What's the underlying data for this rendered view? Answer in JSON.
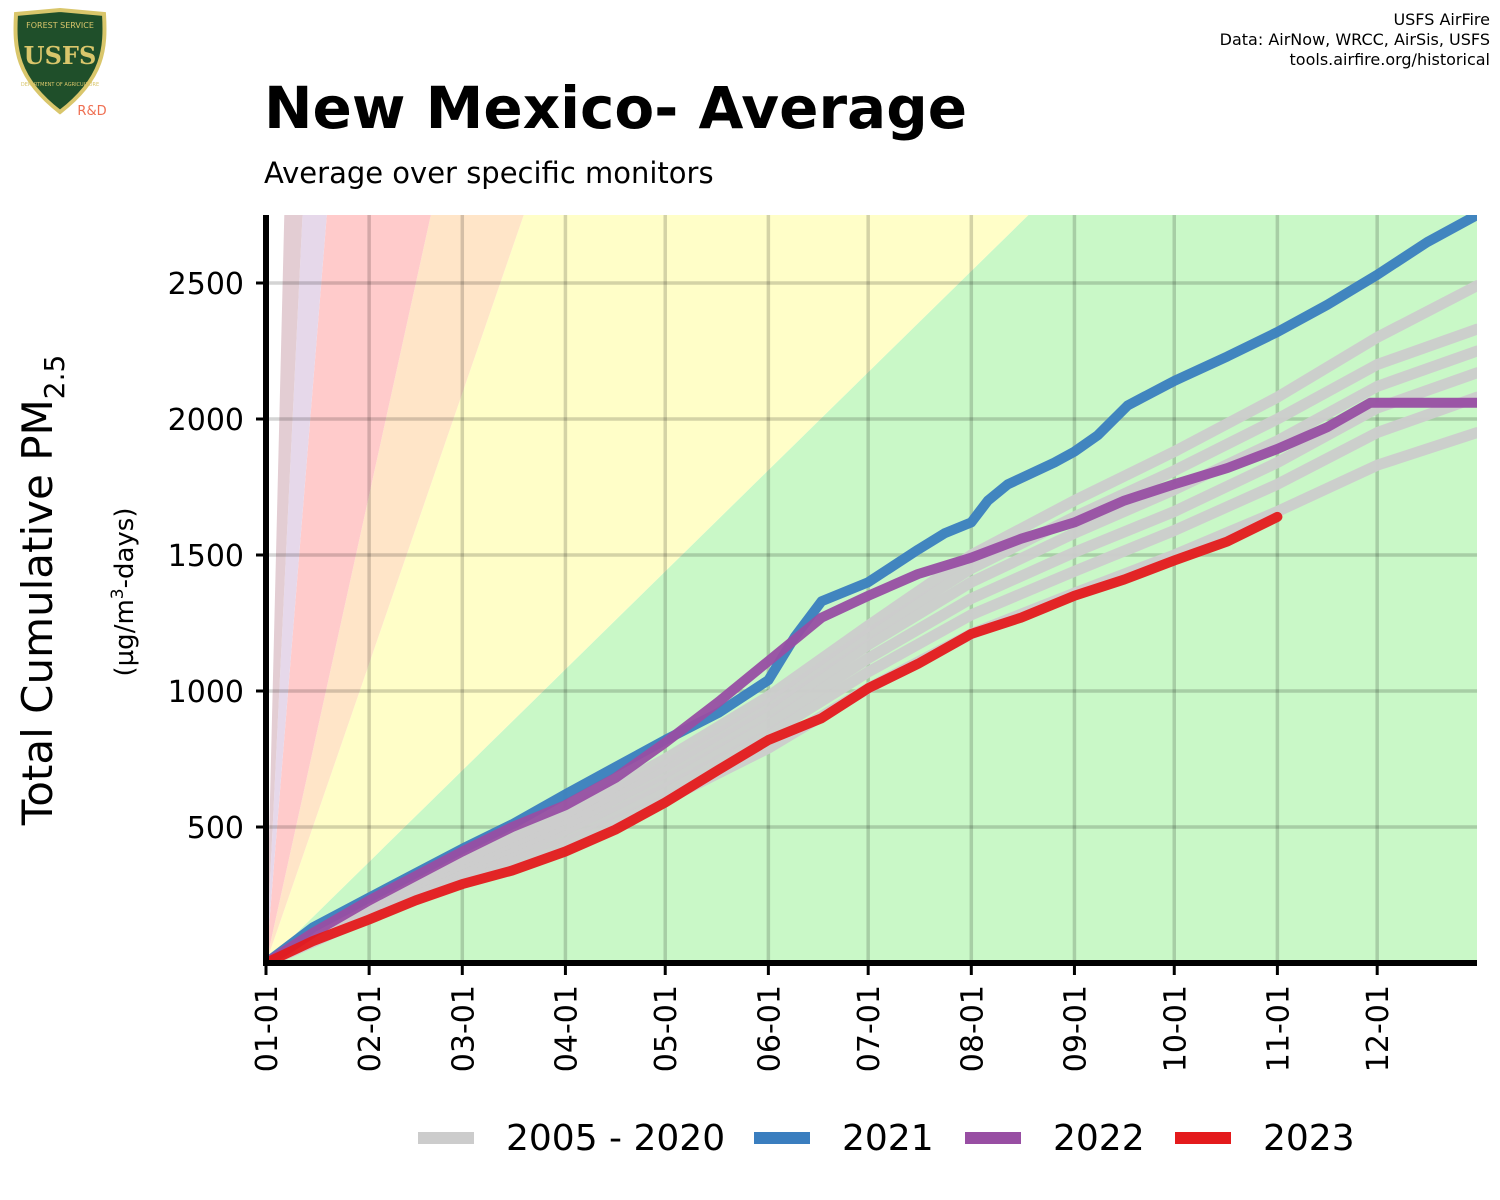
{
  "logo": {
    "top_text": "FOREST SERVICE",
    "letters": "USFS",
    "bottom_text": "DEPARTMENT OF AGRICULTURE",
    "badge": "R&D",
    "icon": "usfs-shield-icon",
    "colors": {
      "shield_green": "#1f4f2a",
      "gold": "#d9c66b",
      "badge": "#ef6f52"
    }
  },
  "credits": [
    "USFS AirFire",
    "Data: AirNow, WRCC, AirSis, USFS",
    "tools.airfire.org/historical"
  ],
  "title": "New Mexico- Average",
  "subtitle": "Average over specific monitors",
  "chart_data": {
    "type": "line",
    "title": "New Mexico- Average",
    "subtitle": "Average over specific monitors",
    "ylabel": "Total Cumulative PM",
    "ylabel_subscript": "2.5",
    "ylabel_unit_pre": "(µg/m",
    "ylabel_unit_sup": "3",
    "ylabel_unit_post": "-days)",
    "xlabel": "",
    "x_ticks": [
      "01-01",
      "02-01",
      "03-01",
      "04-01",
      "05-01",
      "06-01",
      "07-01",
      "08-01",
      "09-01",
      "10-01",
      "11-01",
      "12-01"
    ],
    "x_tick_days": [
      1,
      32,
      60,
      91,
      121,
      152,
      182,
      213,
      244,
      274,
      305,
      335
    ],
    "xlim": [
      1,
      365
    ],
    "y_ticks": [
      500,
      1000,
      1500,
      2000,
      2500
    ],
    "ylim": [
      0,
      2750
    ],
    "grid": true,
    "legend_position": "bottom",
    "aqi_bands": {
      "boundaries_per_day": [
        0,
        12,
        35.5,
        55.5,
        150.5,
        250.5,
        500
      ],
      "colors": [
        "#c9f8c7",
        "#fffec8",
        "#ffe5c8",
        "#ffcbcb",
        "#e6d8ea",
        "#e3cdd3"
      ]
    },
    "series": [
      {
        "name": "2005 - 2020",
        "color": "#cccccc",
        "lines": [
          {
            "x": [
              1,
              32,
              60,
              91,
              121,
              152,
              182,
              213,
              244,
              274,
              305,
              335,
              365
            ],
            "y": [
              0,
              170,
              300,
              440,
              600,
              790,
              1010,
              1210,
              1360,
              1500,
              1660,
              1830,
              1950
            ]
          },
          {
            "x": [
              1,
              32,
              60,
              91,
              121,
              152,
              182,
              213,
              244,
              274,
              305,
              335,
              365
            ],
            "y": [
              0,
              185,
              320,
              470,
              640,
              840,
              1070,
              1280,
              1440,
              1590,
              1760,
              1950,
              2080
            ]
          },
          {
            "x": [
              1,
              32,
              60,
              91,
              121,
              152,
              182,
              213,
              244,
              274,
              305,
              335,
              365
            ],
            "y": [
              0,
              195,
              335,
              490,
              670,
              880,
              1120,
              1340,
              1510,
              1660,
              1840,
              2040,
              2170
            ]
          },
          {
            "x": [
              1,
              32,
              60,
              91,
              121,
              152,
              182,
              213,
              244,
              274,
              305,
              335,
              365
            ],
            "y": [
              0,
              205,
              350,
              510,
              700,
              920,
              1170,
              1400,
              1580,
              1740,
              1920,
              2120,
              2250
            ]
          },
          {
            "x": [
              1,
              32,
              60,
              91,
              121,
              152,
              182,
              213,
              244,
              274,
              305,
              335,
              365
            ],
            "y": [
              0,
              215,
              365,
              530,
              725,
              950,
              1210,
              1450,
              1640,
              1810,
              2000,
              2200,
              2330
            ]
          },
          {
            "x": [
              1,
              32,
              60,
              91,
              121,
              152,
              182,
              213,
              244,
              274,
              305,
              335,
              365
            ],
            "y": [
              0,
              225,
              380,
              550,
              750,
              980,
              1240,
              1500,
              1700,
              1880,
              2080,
              2300,
              2490
            ]
          }
        ]
      },
      {
        "name": "2021",
        "color": "#3a7ebf",
        "lines": [
          {
            "x": [
              1,
              15,
              32,
              46,
              60,
              75,
              91,
              106,
              121,
              137,
              152,
              160,
              168,
              182,
              197,
              205,
              213,
              218,
              224,
              238,
              244,
              251,
              260,
              274,
              290,
              305,
              320,
              335,
              350,
              365
            ],
            "y": [
              0,
              130,
              240,
              330,
              420,
              510,
              620,
              720,
              820,
              920,
              1040,
              1200,
              1330,
              1400,
              1520,
              1580,
              1620,
              1700,
              1760,
              1840,
              1880,
              1940,
              2050,
              2140,
              2230,
              2320,
              2420,
              2530,
              2650,
              2750
            ]
          }
        ]
      },
      {
        "name": "2022",
        "color": "#984ea3",
        "lines": [
          {
            "x": [
              1,
              15,
              32,
              46,
              60,
              75,
              91,
              106,
              121,
              137,
              152,
              168,
              182,
              197,
              213,
              228,
              244,
              259,
              274,
              290,
              305,
              320,
              333,
              365
            ],
            "y": [
              0,
              110,
              230,
              320,
              410,
              500,
              580,
              680,
              810,
              960,
              1110,
              1270,
              1350,
              1430,
              1490,
              1560,
              1620,
              1700,
              1760,
              1820,
              1890,
              1970,
              2060,
              2060
            ]
          }
        ]
      },
      {
        "name": "2023",
        "color": "#e41a1c",
        "lines": [
          {
            "x": [
              1,
              15,
              32,
              46,
              60,
              75,
              91,
              106,
              121,
              137,
              152,
              168,
              182,
              197,
              213,
              228,
              244,
              259,
              274,
              290,
              305
            ],
            "y": [
              0,
              80,
              160,
              230,
              290,
              340,
              410,
              490,
              590,
              710,
              820,
              900,
              1010,
              1100,
              1210,
              1270,
              1350,
              1410,
              1480,
              1550,
              1640
            ]
          }
        ]
      }
    ]
  }
}
